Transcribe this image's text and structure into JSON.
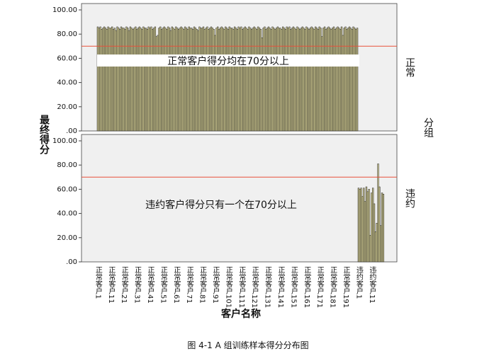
{
  "chart_data": {
    "type": "bar",
    "y_label": "最终得分",
    "x_label": "客户名称",
    "facet_label": "分组",
    "caption": "图 4-1 A 组训练样本得分分布图",
    "reference_line": 70,
    "reference_color": "#e8503a",
    "color": "#c9c38c",
    "ylim": [
      0,
      100
    ],
    "yticks": [
      {
        "value": 0,
        "label": ".00"
      },
      {
        "value": 20,
        "label": "20.00"
      },
      {
        "value": 40,
        "label": "40.00"
      },
      {
        "value": 60,
        "label": "60.00"
      },
      {
        "value": 80,
        "label": "80.00"
      },
      {
        "value": 100,
        "label": "100.00"
      }
    ],
    "panels": [
      {
        "name": "正常",
        "annotation": "正常客户得分均在70分以上",
        "categories": [
          "正常客户1",
          null,
          null,
          null,
          null,
          null,
          null,
          null,
          null,
          null,
          "正常客户11",
          null,
          null,
          null,
          null,
          null,
          null,
          null,
          null,
          null,
          "正常客户21",
          null,
          null,
          null,
          null,
          null,
          null,
          null,
          null,
          null,
          "正常客户31",
          null,
          null,
          null,
          null,
          null,
          null,
          null,
          null,
          null,
          "正常客户41",
          null,
          null,
          null,
          null,
          null,
          null,
          null,
          null,
          null,
          "正常客户51",
          null,
          null,
          null,
          null,
          null,
          null,
          null,
          null,
          null,
          "正常客户61",
          null,
          null,
          null,
          null,
          null,
          null,
          null,
          null,
          null,
          "正常客户71",
          null,
          null,
          null,
          null,
          null,
          null,
          null,
          null,
          null,
          "正常客户81",
          null,
          null,
          null,
          null,
          null,
          null,
          null,
          null,
          null,
          "正常客户91",
          null,
          null,
          null,
          null,
          null,
          null,
          null,
          null,
          null,
          "正常客户101",
          null,
          null,
          null,
          null,
          null,
          null,
          null,
          null,
          null,
          "正常客户111",
          null,
          null,
          null,
          null,
          null,
          null,
          null,
          null,
          null,
          "正常客户121",
          null,
          null,
          null,
          null,
          null,
          null,
          null,
          null,
          null,
          "正常客户131",
          null,
          null,
          null,
          null,
          null,
          null,
          null,
          null,
          null,
          "正常客户141",
          null,
          null,
          null,
          null,
          null,
          null,
          null,
          null,
          null,
          "正常客户151",
          null,
          null,
          null,
          null,
          null,
          null,
          null,
          null,
          null,
          "正常客户161",
          null,
          null,
          null,
          null,
          null,
          null,
          null,
          null,
          null,
          "正常客户171",
          null,
          null,
          null,
          null,
          null,
          null,
          null,
          null,
          null,
          "正常客户181",
          null,
          null,
          null,
          null,
          null,
          null,
          null,
          null,
          null,
          "正常客户191",
          null,
          null,
          null,
          null,
          null,
          null,
          null,
          null,
          null
        ],
        "values": [
          86,
          85,
          86,
          84,
          85,
          86,
          85,
          84,
          86,
          85,
          85,
          86,
          84,
          85,
          83,
          86,
          85,
          84,
          86,
          85,
          85,
          84,
          86,
          85,
          83,
          86,
          85,
          84,
          85,
          86,
          84,
          85,
          86,
          85,
          84,
          86,
          85,
          85,
          84,
          86,
          85,
          86,
          84,
          85,
          86,
          78,
          79,
          85,
          86,
          84,
          85,
          86,
          85,
          84,
          86,
          85,
          83,
          86,
          85,
          84,
          86,
          85,
          84,
          85,
          86,
          85,
          84,
          86,
          85,
          84,
          86,
          85,
          85,
          84,
          86,
          85,
          84,
          83,
          86,
          85,
          85,
          86,
          84,
          85,
          86,
          84,
          85,
          86,
          85,
          84,
          79,
          85,
          86,
          84,
          85,
          86,
          85,
          84,
          86,
          85,
          84,
          86,
          85,
          85,
          84,
          86,
          85,
          84,
          86,
          85,
          86,
          84,
          85,
          86,
          85,
          84,
          86,
          85,
          84,
          85,
          86,
          85,
          84,
          86,
          85,
          84,
          77,
          85,
          86,
          84,
          85,
          86,
          85,
          84,
          86,
          85,
          84,
          85,
          86,
          85,
          85,
          84,
          86,
          85,
          84,
          86,
          85,
          86,
          84,
          85,
          86,
          85,
          84,
          86,
          85,
          84,
          85,
          86,
          85,
          84,
          86,
          85,
          84,
          85,
          86,
          85,
          84,
          86,
          85,
          84,
          86,
          85,
          78,
          85,
          86,
          84,
          85,
          86,
          85,
          84,
          85,
          86,
          84,
          85,
          86,
          85,
          84,
          86,
          79,
          85,
          86,
          84,
          85,
          86,
          85,
          84,
          86,
          85,
          84,
          85
        ]
      },
      {
        "name": "违约",
        "annotation": "违约客户得分只有一个在70分以上",
        "categories": [
          "违约客户1",
          null,
          null,
          null,
          null,
          null,
          null,
          null,
          null,
          null,
          "违约客户11",
          null,
          null,
          null,
          null,
          null,
          null,
          null,
          null,
          null
        ],
        "values": [
          61,
          60,
          61,
          54,
          61,
          50,
          62,
          58,
          60,
          22,
          57,
          61,
          48,
          25,
          32,
          81,
          62,
          30,
          57,
          56
        ]
      }
    ]
  }
}
